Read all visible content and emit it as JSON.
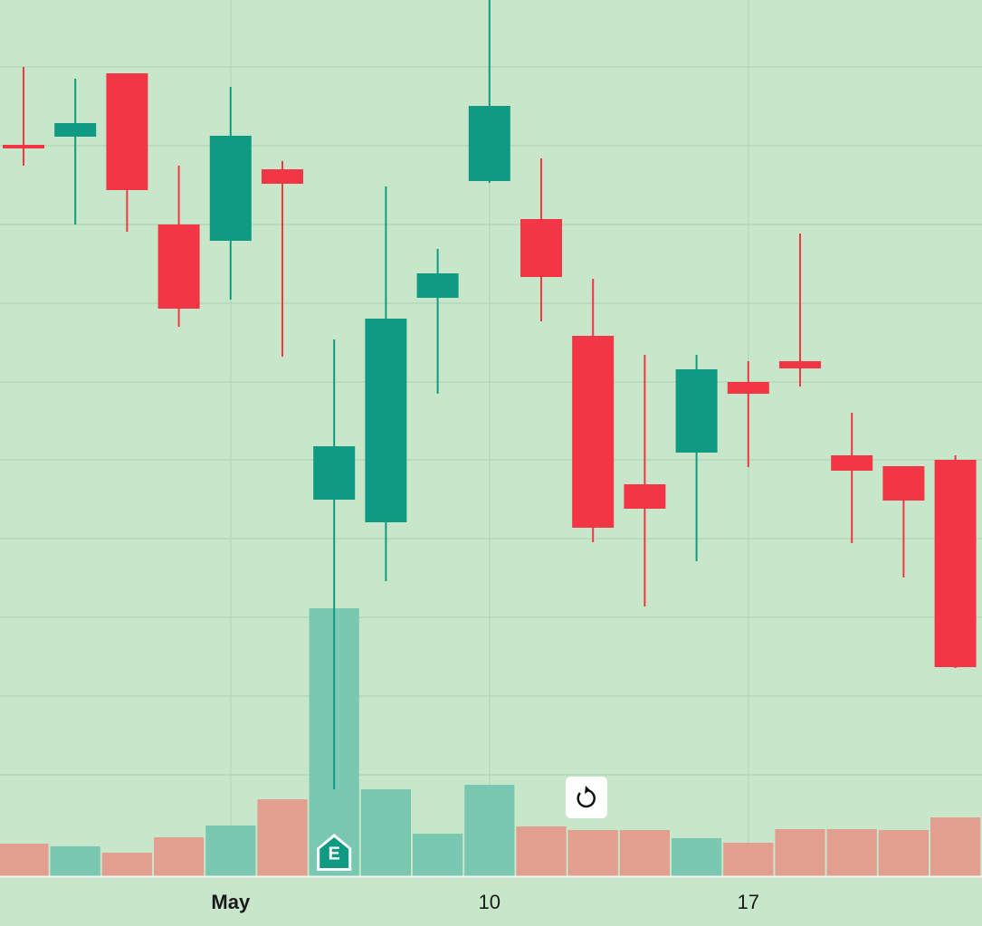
{
  "chart_data": {
    "type": "candlestick",
    "categories": [
      null,
      null,
      null,
      null,
      "May",
      null,
      null,
      null,
      null,
      "10",
      null,
      null,
      null,
      null,
      "17",
      null,
      null,
      null,
      null
    ],
    "open": [
      84.0,
      84.9,
      91.9,
      75.2,
      73.4,
      81.3,
      44.8,
      42.3,
      67.1,
      80.0,
      75.8,
      62.9,
      46.5,
      50.0,
      57.8,
      60.1,
      49.7,
      48.5,
      49.2
    ],
    "high": [
      92.6,
      91.3,
      91.9,
      81.7,
      90.4,
      82.2,
      62.5,
      79.4,
      72.5,
      100,
      82.5,
      69.2,
      60.8,
      60.8,
      60.1,
      74.2,
      54.4,
      48.5,
      49.7
    ],
    "low": [
      81.7,
      75.2,
      74.4,
      63.9,
      66.9,
      60.6,
      12.8,
      35.8,
      56.5,
      79.8,
      64.5,
      40.1,
      33.0,
      38.0,
      48.4,
      57.3,
      40.0,
      36.2,
      26.2
    ],
    "close": [
      83.6,
      86.4,
      79.0,
      65.9,
      85.0,
      79.7,
      50.7,
      64.8,
      69.8,
      88.3,
      69.4,
      41.7,
      43.8,
      59.2,
      56.5,
      59.3,
      48.0,
      44.7,
      26.3
    ],
    "volume": [
      36,
      33,
      26,
      43,
      56,
      85,
      296,
      96,
      47,
      101,
      55,
      51,
      51,
      42,
      37,
      52,
      52,
      51,
      65
    ],
    "ylim": [
      3.2,
      100
    ],
    "yticks": [
      92.6,
      83.9,
      75.2,
      66.5,
      57.8,
      49.2,
      40.5,
      31.8,
      23.1,
      14.4
    ],
    "volume_lim": [
      0,
      300
    ],
    "up_color": "#0f9a83",
    "down_color": "#f23645",
    "volume_up_color": "#7ac8b2",
    "volume_down_color": "#e29e8e",
    "earnings_marker": "E",
    "grid": true
  }
}
